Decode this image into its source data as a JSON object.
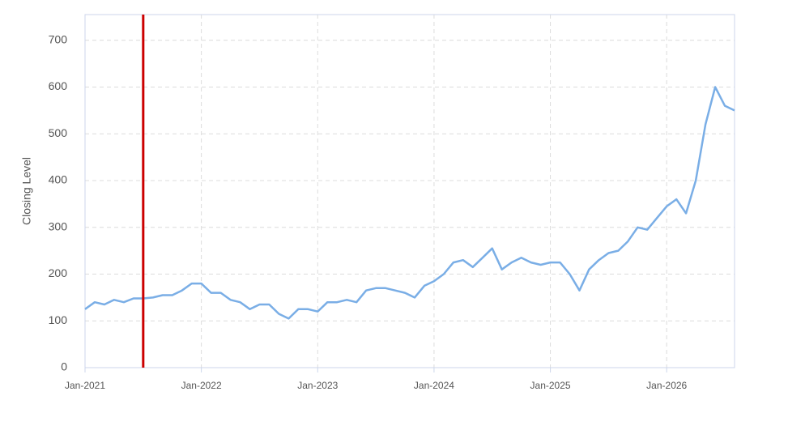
{
  "chart_data": {
    "type": "line",
    "y_label": "Closing Level",
    "x": [
      "2021-01",
      "2021-02",
      "2021-03",
      "2021-04",
      "2021-05",
      "2021-06",
      "2021-07",
      "2021-08",
      "2021-09",
      "2021-10",
      "2021-11",
      "2021-12",
      "2022-01",
      "2022-02",
      "2022-03",
      "2022-04",
      "2022-05",
      "2022-06",
      "2022-07",
      "2022-08",
      "2022-09",
      "2022-10",
      "2022-11",
      "2022-12",
      "2023-01",
      "2023-02",
      "2023-03",
      "2023-04",
      "2023-05",
      "2023-06",
      "2023-07",
      "2023-08",
      "2023-09",
      "2023-10",
      "2023-11",
      "2023-12",
      "2024-01",
      "2024-02",
      "2024-03",
      "2024-04",
      "2024-05",
      "2024-06",
      "2024-07",
      "2024-08",
      "2024-09",
      "2024-10",
      "2024-11",
      "2024-12",
      "2025-01",
      "2025-02",
      "2025-03",
      "2025-04",
      "2025-05",
      "2025-06",
      "2025-07",
      "2025-08",
      "2025-09",
      "2025-10",
      "2025-11",
      "2025-12",
      "2026-01",
      "2026-02",
      "2026-03",
      "2026-04",
      "2026-05",
      "2026-06",
      "2026-07",
      "2026-08"
    ],
    "series": [
      {
        "color": "#7aaee6",
        "values": [
          125,
          140,
          135,
          145,
          140,
          148,
          148,
          150,
          155,
          155,
          165,
          180,
          180,
          160,
          160,
          145,
          140,
          125,
          135,
          135,
          115,
          105,
          125,
          125,
          120,
          140,
          140,
          145,
          140,
          165,
          170,
          170,
          165,
          160,
          150,
          175,
          185,
          200,
          225,
          230,
          215,
          235,
          255,
          210,
          225,
          235,
          225,
          220,
          225,
          225,
          200,
          165,
          210,
          230,
          245,
          250,
          270,
          300,
          295,
          320,
          345,
          360,
          330,
          400,
          520,
          600,
          560,
          550
        ]
      }
    ],
    "xlim": [
      "2021-01",
      "2026-08"
    ],
    "xticks": [
      {
        "value": "2021-01",
        "label": "Jan-2021"
      },
      {
        "value": "2022-01",
        "label": "Jan-2022"
      },
      {
        "value": "2023-01",
        "label": "Jan-2023"
      },
      {
        "value": "2024-01",
        "label": "Jan-2024"
      },
      {
        "value": "2025-01",
        "label": "Jan-2025"
      },
      {
        "value": "2026-01",
        "label": "Jan-2026"
      }
    ],
    "ylim": [
      0,
      755
    ],
    "yticks": [
      0,
      100,
      200,
      300,
      400,
      500,
      600,
      700
    ],
    "grid": true,
    "vline": {
      "x": "2021-07",
      "color": "#cc0000"
    }
  }
}
